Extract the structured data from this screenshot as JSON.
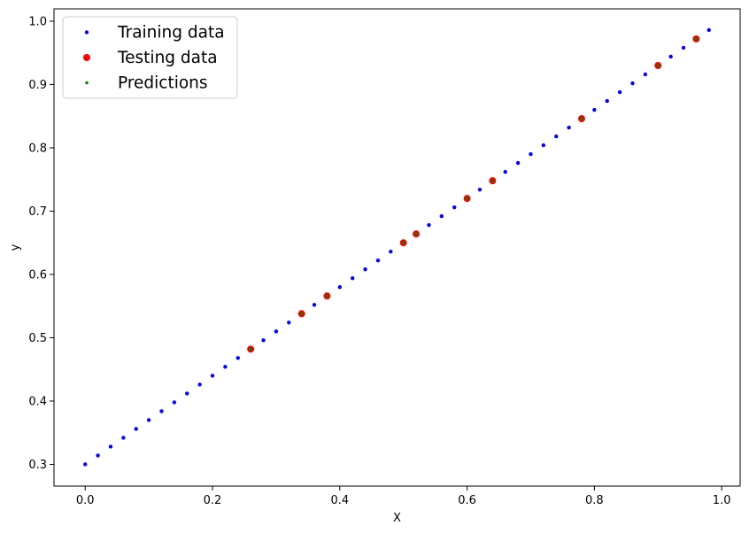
{
  "colors": {
    "training": "#0000ff",
    "testing": "#ff0000",
    "predictions": "#008000",
    "axes": "#000000",
    "legend_border": "#cccccc",
    "background": "#ffffff"
  },
  "chart_data": {
    "type": "scatter",
    "title": "",
    "xlabel": "X",
    "ylabel": "y",
    "xlim": [
      -0.049,
      1.029
    ],
    "ylim": [
      0.2657,
      1.0195
    ],
    "xticks": [
      0.0,
      0.2,
      0.4,
      0.6,
      0.8,
      1.0
    ],
    "xtick_labels": [
      "0.0",
      "0.2",
      "0.4",
      "0.6",
      "0.8",
      "1.0"
    ],
    "yticks": [
      0.3,
      0.4,
      0.5,
      0.6,
      0.7,
      0.8,
      0.9,
      1.0
    ],
    "ytick_labels": [
      "0.3",
      "0.4",
      "0.5",
      "0.6",
      "0.7",
      "0.8",
      "0.9",
      "1.0"
    ],
    "grid": false,
    "legend_position": "upper-left",
    "series": [
      {
        "name": "Training data",
        "color": "#0000ff",
        "marker": "small-dot",
        "x": [
          0.0,
          0.02,
          0.04,
          0.06,
          0.08,
          0.1,
          0.12,
          0.14,
          0.16,
          0.18,
          0.2,
          0.22,
          0.24,
          0.28,
          0.3,
          0.32,
          0.36,
          0.4,
          0.42,
          0.44,
          0.46,
          0.48,
          0.54,
          0.56,
          0.58,
          0.62,
          0.66,
          0.68,
          0.7,
          0.72,
          0.74,
          0.76,
          0.8,
          0.82,
          0.84,
          0.86,
          0.88,
          0.92,
          0.94,
          0.98
        ],
        "y": [
          0.3,
          0.314,
          0.328,
          0.342,
          0.356,
          0.37,
          0.384,
          0.398,
          0.412,
          0.426,
          0.44,
          0.454,
          0.468,
          0.496,
          0.51,
          0.524,
          0.552,
          0.58,
          0.594,
          0.608,
          0.622,
          0.636,
          0.678,
          0.692,
          0.706,
          0.734,
          0.762,
          0.776,
          0.79,
          0.804,
          0.818,
          0.832,
          0.86,
          0.874,
          0.888,
          0.902,
          0.916,
          0.944,
          0.958,
          0.986
        ]
      },
      {
        "name": "Testing data",
        "color": "#ff0000",
        "marker": "large-dot",
        "x": [
          0.26,
          0.34,
          0.38,
          0.5,
          0.52,
          0.6,
          0.64,
          0.78,
          0.9,
          0.96
        ],
        "y": [
          0.482,
          0.538,
          0.566,
          0.65,
          0.664,
          0.72,
          0.748,
          0.846,
          0.93,
          0.972
        ]
      },
      {
        "name": "Predictions",
        "color": "#008000",
        "marker": "small-dot",
        "x": [
          0.26,
          0.34,
          0.38,
          0.5,
          0.52,
          0.6,
          0.64,
          0.78,
          0.9,
          0.96
        ],
        "y": [
          0.482,
          0.538,
          0.566,
          0.65,
          0.664,
          0.72,
          0.748,
          0.846,
          0.93,
          0.972
        ]
      }
    ]
  }
}
